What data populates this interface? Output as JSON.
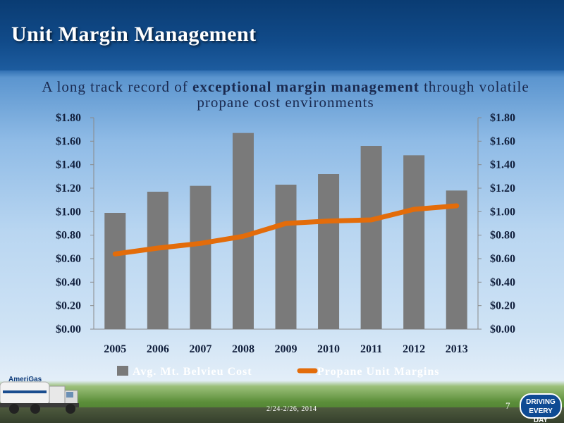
{
  "slide": {
    "title": "Unit Margin Management",
    "subtitle_pre": "A long track record of ",
    "subtitle_bold": "exceptional margin management",
    "subtitle_post": " through volatile propane cost environments",
    "date": "2/24-2/26, 2014",
    "page_number": "7",
    "logo_text": "AmeriGas",
    "badge_line1": "DRIVING",
    "badge_line2": "EVERY DAY"
  },
  "colors": {
    "bar": "#7a7a7a",
    "line": "#e36c0a",
    "title_bar": "#0b3f78"
  },
  "chart_data": {
    "type": "bar",
    "categories": [
      "2005",
      "2006",
      "2007",
      "2008",
      "2009",
      "2010",
      "2011",
      "2012",
      "2013"
    ],
    "series": [
      {
        "name": "Avg. Mt. Belvieu Cost",
        "type": "bar",
        "axis": "left",
        "values": [
          0.99,
          1.17,
          1.22,
          1.67,
          1.23,
          1.32,
          1.56,
          1.48,
          1.18
        ]
      },
      {
        "name": "Propane Unit Margins",
        "type": "line",
        "axis": "right",
        "values": [
          0.64,
          0.69,
          0.73,
          0.79,
          0.9,
          0.92,
          0.93,
          1.02,
          1.05
        ]
      }
    ],
    "ylim": [
      0,
      1.8
    ],
    "y_ticks": [
      "$0.00",
      "$0.20",
      "$0.40",
      "$0.60",
      "$0.80",
      "$1.00",
      "$1.20",
      "$1.40",
      "$1.60",
      "$1.80"
    ],
    "y_tick_values": [
      0,
      0.2,
      0.4,
      0.6,
      0.8,
      1.0,
      1.2,
      1.4,
      1.6,
      1.8
    ],
    "legend_position": "bottom",
    "grid": false
  }
}
